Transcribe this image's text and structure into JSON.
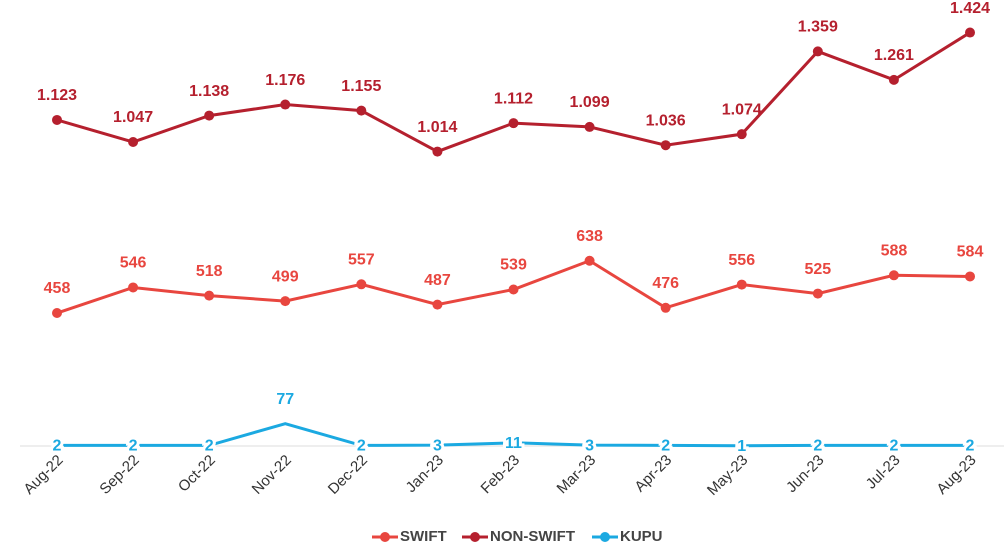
{
  "chart_data": {
    "type": "line",
    "categories": [
      "Aug-22",
      "Sep-22",
      "Oct-22",
      "Nov-22",
      "Dec-22",
      "Jan-23",
      "Feb-23",
      "Mar-23",
      "Apr-23",
      "May-23",
      "Jun-23",
      "Jul-23",
      "Aug-23"
    ],
    "series": [
      {
        "name": "SWIFT",
        "color": "#e8463f",
        "values": [
          458,
          546,
          518,
          499,
          557,
          487,
          539,
          638,
          476,
          556,
          525,
          588,
          584
        ]
      },
      {
        "name": "NON-SWIFT",
        "color": "#b5202e",
        "values": [
          1123,
          1047,
          1138,
          1176,
          1155,
          1014,
          1112,
          1099,
          1036,
          1074,
          1359,
          1261,
          1424
        ],
        "value_labels": [
          "1.123",
          "1.047",
          "1.138",
          "1.176",
          "1.155",
          "1.014",
          "1.112",
          "1.099",
          "1.036",
          "1.074",
          "1.359",
          "1.261",
          "1.424"
        ]
      },
      {
        "name": "KUPU",
        "color": "#1ba9e1",
        "values": [
          2,
          2,
          2,
          77,
          2,
          3,
          11,
          3,
          2,
          1,
          2,
          2,
          2
        ]
      }
    ],
    "ylim": [
      0,
      1450
    ],
    "legend": "bottom"
  }
}
